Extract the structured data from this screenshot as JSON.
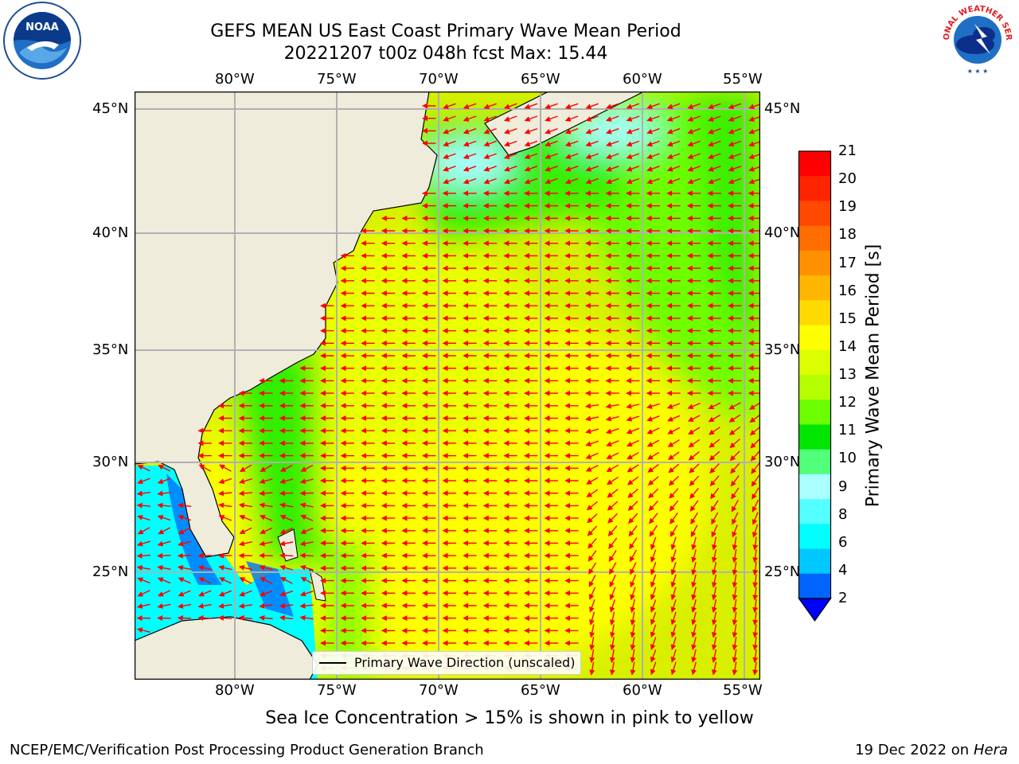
{
  "header": {
    "title_line1": "GEFS MEAN US East Coast Primary Wave Mean Period",
    "title_line2": "20221207 t00z 048h fcst   Max: 15.44"
  },
  "logos": {
    "noaa_text": "NOAA",
    "nws_text": "NATIONAL WEATHER SERVICE"
  },
  "map": {
    "lon_labels": [
      "80°W",
      "75°W",
      "70°W",
      "65°W",
      "60°W",
      "55°W"
    ],
    "lat_labels": [
      "45°N",
      "40°N",
      "35°N",
      "30°N",
      "25°N"
    ],
    "legend_text": "Primary Wave Direction (unscaled)",
    "land_color": "#efecdc",
    "arrow_color": "#ff0000"
  },
  "colorbar": {
    "label": "Primary Wave Mean Period [s]",
    "ticks": [
      "21",
      "20",
      "19",
      "18",
      "17",
      "16",
      "15",
      "14",
      "13",
      "12",
      "11",
      "10",
      "9",
      "8",
      "6",
      "4",
      "2"
    ],
    "colors": [
      "#ff0000",
      "#ff2400",
      "#ff4800",
      "#ff6d00",
      "#ff9100",
      "#ffb600",
      "#ffda00",
      "#ffff00",
      "#dbff00",
      "#b6ff00",
      "#6dff00",
      "#00e600",
      "#52ff7b",
      "#aaffff",
      "#55ffff",
      "#00ffff",
      "#00c8ff",
      "#0064ff"
    ],
    "under_color": "#0000ff"
  },
  "footer": {
    "caption": "Sea Ice Concentration > 15% is shown in pink to yellow",
    "credit": "NCEP/EMC/Verification Post Processing Product Generation Branch",
    "date": "19 Dec 2022 on",
    "host": "Hera"
  }
}
